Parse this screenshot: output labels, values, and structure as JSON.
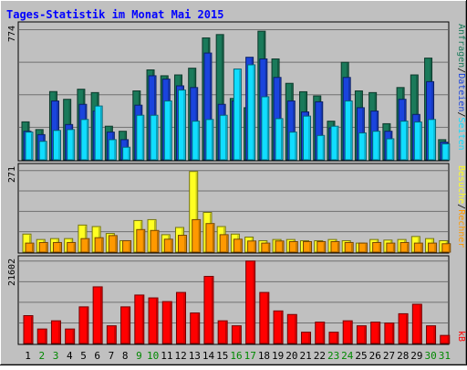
{
  "chart_data": {
    "title": "Tages-Statistik im Monat Mai 2015",
    "days": [
      "1",
      "2",
      "3",
      "4",
      "5",
      "6",
      "7",
      "8",
      "9",
      "10",
      "11",
      "12",
      "13",
      "14",
      "15",
      "16",
      "17",
      "18",
      "19",
      "20",
      "21",
      "22",
      "23",
      "24",
      "25",
      "26",
      "27",
      "28",
      "29",
      "30",
      "31"
    ],
    "weekend_days": [
      "2",
      "3",
      "9",
      "10",
      "16",
      "17",
      "23",
      "24",
      "30",
      "31"
    ],
    "panels": [
      {
        "name": "top",
        "type": "bar",
        "ylim": [
          0,
          774
        ],
        "max_tick_label": "774",
        "series": [
          {
            "name": "Anfragen",
            "color": "#1a7a5a",
            "values": [
              226,
              180,
              406,
              360,
              420,
              400,
              200,
              170,
              410,
              535,
              500,
              505,
              545,
              725,
              745,
              365,
              310,
              765,
              600,
              455,
              405,
              380,
              230,
              580,
              410,
              400,
              215,
              430,
              505,
              605,
              120
            ]
          },
          {
            "name": "Dateien",
            "color": "#1a44dd",
            "values": [
              170,
              150,
              350,
              210,
              330,
              290,
              165,
              120,
              325,
              500,
              480,
              440,
              430,
              635,
              330,
              350,
              610,
              600,
              490,
              350,
              285,
              345,
              190,
              490,
              310,
              290,
              170,
              360,
              270,
              465,
              105
            ]
          },
          {
            "name": "Seiten",
            "color": "#11ddff",
            "values": [
              165,
              110,
              175,
              180,
              240,
              320,
              120,
              75,
              265,
              265,
              350,
              415,
              230,
              240,
              265,
              540,
              565,
              375,
              245,
              165,
              260,
              145,
              200,
              350,
              160,
              170,
              125,
              230,
              225,
              240,
              95
            ]
          }
        ]
      },
      {
        "name": "middle",
        "type": "bar",
        "ylim": [
          0,
          271
        ],
        "max_tick_label": "271",
        "series": [
          {
            "name": "Besuche",
            "color": "#ffff22",
            "values": [
              60,
              42,
              45,
              45,
              90,
              85,
              62,
              38,
              105,
              108,
              58,
              82,
              268,
              132,
              85,
              60,
              50,
              38,
              42,
              42,
              38,
              38,
              42,
              38,
              30,
              42,
              40,
              42,
              52,
              45,
              38
            ]
          },
          {
            "name": "Rechner",
            "color": "#ff9900",
            "values": [
              30,
              32,
              32,
              32,
              45,
              48,
              55,
              38,
              75,
              72,
              43,
              56,
              108,
              95,
              58,
              43,
              37,
              30,
              37,
              35,
              35,
              35,
              35,
              32,
              30,
              32,
              30,
              32,
              30,
              30,
              28
            ]
          }
        ]
      },
      {
        "name": "bottom",
        "type": "bar",
        "ylim": [
          0,
          21602
        ],
        "max_tick_label": "21602",
        "series": [
          {
            "name": "kB",
            "color": "#ff0000",
            "values": [
              7300,
              3800,
              5950,
              3800,
              9600,
              14850,
              4640,
              9600,
              12700,
              11950,
              10980,
              13380,
              8000,
              17580,
              5950,
              4640,
              21602,
              13380,
              8540,
              7600,
              2960,
              5600,
              2960,
              5950,
              4640,
              5600,
              5360,
              7800,
              10280,
              4640,
              2120
            ]
          }
        ]
      }
    ],
    "right_axis_labels": [
      {
        "text": "Anfragen",
        "color": "#1a7a5a"
      },
      {
        "text": "Dateien",
        "color": "#1a44dd"
      },
      {
        "text": "Seiten",
        "color": "#11ddff"
      },
      {
        "text": "Besuche",
        "color": "#ffff22"
      },
      {
        "text": "Rechner",
        "color": "#ff9900"
      },
      {
        "text": "kB",
        "color": "#ff0000"
      }
    ]
  }
}
